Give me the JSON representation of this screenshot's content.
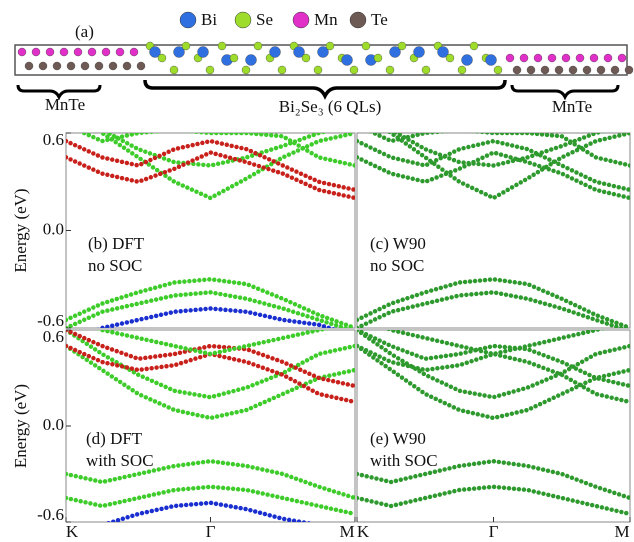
{
  "panel_a": {
    "label": "(a)",
    "legend": [
      {
        "name": "Bi",
        "color": "#2f6fe0"
      },
      {
        "name": "Se",
        "color": "#9ddc2a"
      },
      {
        "name": "Mn",
        "color": "#e030c8"
      },
      {
        "name": "Te",
        "color": "#6e5a55"
      }
    ],
    "regions": [
      "MnTe",
      "Bi₂Se₃ (6 QLs)",
      "MnTe"
    ]
  },
  "chart_data": [
    {
      "type": "line",
      "annotation": [
        "(b) DFT",
        "no SOC"
      ],
      "ylabel": "Energy (eV)",
      "xlim": [
        0,
        2
      ],
      "ylim": [
        -0.6,
        0.6
      ],
      "yticks": [
        0.6,
        {
          "value": 0,
          "label": "0.0"
        },
        -0.6
      ],
      "x": [
        0,
        0.25,
        0.5,
        0.75,
        1,
        1.25,
        1.5,
        1.75,
        2
      ],
      "series": [
        {
          "color": "#3dcc2a",
          "values": [
            0.75,
            0.6,
            0.45,
            0.3,
            0.2,
            0.32,
            0.45,
            0.55,
            0.6
          ]
        },
        {
          "color": "#3dcc2a",
          "values": [
            0.8,
            0.62,
            0.5,
            0.42,
            0.4,
            0.45,
            0.52,
            0.6,
            0.65
          ]
        },
        {
          "color": "#c8201a",
          "values": [
            0.55,
            0.45,
            0.4,
            0.5,
            0.55,
            0.5,
            0.4,
            0.3,
            0.25
          ]
        },
        {
          "color": "#c8201a",
          "values": [
            0.45,
            0.35,
            0.3,
            0.38,
            0.48,
            0.42,
            0.35,
            0.25,
            0.2
          ]
        },
        {
          "color": "#3dcc2a",
          "values": [
            0.65,
            0.55,
            0.6,
            0.62,
            0.6,
            0.6,
            0.58,
            0.45,
            0.4
          ]
        },
        {
          "color": "#3dcc2a",
          "values": [
            -0.55,
            -0.45,
            -0.38,
            -0.32,
            -0.3,
            -0.33,
            -0.42,
            -0.52,
            -0.6
          ]
        },
        {
          "color": "#3dcc2a",
          "values": [
            -0.6,
            -0.5,
            -0.45,
            -0.4,
            -0.38,
            -0.42,
            -0.48,
            -0.55,
            -0.62
          ]
        },
        {
          "color": "#1a2fd0",
          "values": [
            -0.7,
            -0.6,
            -0.55,
            -0.5,
            -0.48,
            -0.5,
            -0.55,
            -0.58,
            -0.65
          ]
        }
      ]
    },
    {
      "type": "line",
      "annotation": [
        "(c) W90",
        "no SOC"
      ],
      "xlim": [
        0,
        2
      ],
      "ylim": [
        -0.6,
        0.6
      ],
      "x": [
        0,
        0.25,
        0.5,
        0.75,
        1,
        1.25,
        1.5,
        1.75,
        2
      ],
      "series": [
        {
          "color": "#2e9a2e",
          "values": [
            0.75,
            0.6,
            0.45,
            0.3,
            0.2,
            0.32,
            0.45,
            0.55,
            0.6
          ]
        },
        {
          "color": "#2e9a2e",
          "values": [
            0.8,
            0.62,
            0.5,
            0.42,
            0.4,
            0.45,
            0.52,
            0.6,
            0.65
          ]
        },
        {
          "color": "#2e9a2e",
          "values": [
            0.55,
            0.45,
            0.4,
            0.5,
            0.55,
            0.5,
            0.4,
            0.3,
            0.25
          ]
        },
        {
          "color": "#2e9a2e",
          "values": [
            0.45,
            0.35,
            0.3,
            0.38,
            0.48,
            0.42,
            0.35,
            0.25,
            0.2
          ]
        },
        {
          "color": "#2e9a2e",
          "values": [
            0.65,
            0.55,
            0.6,
            0.62,
            0.6,
            0.6,
            0.58,
            0.45,
            0.4
          ]
        },
        {
          "color": "#2e9a2e",
          "values": [
            -0.55,
            -0.45,
            -0.38,
            -0.32,
            -0.3,
            -0.33,
            -0.42,
            -0.52,
            -0.6
          ]
        },
        {
          "color": "#2e9a2e",
          "values": [
            -0.6,
            -0.5,
            -0.45,
            -0.4,
            -0.38,
            -0.42,
            -0.48,
            -0.55,
            -0.62
          ]
        }
      ]
    },
    {
      "type": "line",
      "annotation": [
        "(d) DFT",
        "with SOC"
      ],
      "ylabel": "Energy (eV)",
      "xlim": [
        0,
        2
      ],
      "ylim": [
        -0.6,
        0.6
      ],
      "xticks": [
        {
          "value": 0,
          "label": "K"
        },
        {
          "value": 1,
          "label": "Γ"
        },
        {
          "value": 2,
          "label": "M"
        }
      ],
      "yticks": [
        0.6,
        {
          "value": 0,
          "label": "0.0"
        },
        -0.6
      ],
      "x": [
        0,
        0.25,
        0.5,
        0.75,
        1,
        1.25,
        1.5,
        1.75,
        2
      ],
      "series": [
        {
          "color": "#3dcc2a",
          "values": [
            0.5,
            0.35,
            0.2,
            0.1,
            0.05,
            0.1,
            0.2,
            0.3,
            0.35
          ]
        },
        {
          "color": "#3dcc2a",
          "values": [
            0.6,
            0.45,
            0.32,
            0.22,
            0.18,
            0.24,
            0.33,
            0.45,
            0.5
          ]
        },
        {
          "color": "#c8201a",
          "values": [
            0.6,
            0.5,
            0.42,
            0.45,
            0.5,
            0.48,
            0.4,
            0.3,
            0.25
          ]
        },
        {
          "color": "#c8201a",
          "values": [
            0.5,
            0.4,
            0.35,
            0.38,
            0.45,
            0.4,
            0.32,
            0.2,
            0.15
          ]
        },
        {
          "color": "#3dcc2a",
          "values": [
            0.7,
            0.6,
            0.55,
            0.5,
            0.45,
            0.5,
            0.55,
            0.6,
            0.65
          ]
        },
        {
          "color": "#3dcc2a",
          "values": [
            -0.3,
            -0.35,
            -0.3,
            -0.25,
            -0.22,
            -0.25,
            -0.3,
            -0.38,
            -0.45
          ]
        },
        {
          "color": "#3dcc2a",
          "values": [
            -0.45,
            -0.5,
            -0.45,
            -0.4,
            -0.38,
            -0.4,
            -0.45,
            -0.5,
            -0.55
          ]
        },
        {
          "color": "#1a2fd0",
          "values": [
            -0.7,
            -0.62,
            -0.55,
            -0.5,
            -0.48,
            -0.52,
            -0.58,
            -0.62,
            -0.7
          ]
        }
      ]
    },
    {
      "type": "line",
      "annotation": [
        "(e) W90",
        "with SOC"
      ],
      "xlim": [
        0,
        2
      ],
      "ylim": [
        -0.6,
        0.6
      ],
      "xticks": [
        {
          "value": 0,
          "label": "K"
        },
        {
          "value": 1,
          "label": "Γ"
        },
        {
          "value": 2,
          "label": "M"
        }
      ],
      "x": [
        0,
        0.25,
        0.5,
        0.75,
        1,
        1.25,
        1.5,
        1.75,
        2
      ],
      "series": [
        {
          "color": "#2e9a2e",
          "values": [
            0.5,
            0.35,
            0.2,
            0.1,
            0.05,
            0.1,
            0.2,
            0.3,
            0.35
          ]
        },
        {
          "color": "#2e9a2e",
          "values": [
            0.6,
            0.45,
            0.32,
            0.22,
            0.18,
            0.24,
            0.33,
            0.45,
            0.5
          ]
        },
        {
          "color": "#2e9a2e",
          "values": [
            0.6,
            0.5,
            0.42,
            0.45,
            0.5,
            0.48,
            0.4,
            0.3,
            0.25
          ]
        },
        {
          "color": "#2e9a2e",
          "values": [
            0.5,
            0.4,
            0.35,
            0.38,
            0.45,
            0.4,
            0.32,
            0.2,
            0.15
          ]
        },
        {
          "color": "#2e9a2e",
          "values": [
            0.7,
            0.6,
            0.55,
            0.5,
            0.45,
            0.5,
            0.55,
            0.6,
            0.65
          ]
        },
        {
          "color": "#2e9a2e",
          "values": [
            -0.3,
            -0.35,
            -0.3,
            -0.25,
            -0.22,
            -0.25,
            -0.3,
            -0.38,
            -0.45
          ]
        },
        {
          "color": "#2e9a2e",
          "values": [
            -0.45,
            -0.5,
            -0.45,
            -0.4,
            -0.38,
            -0.4,
            -0.45,
            -0.5,
            -0.55
          ]
        }
      ]
    }
  ]
}
